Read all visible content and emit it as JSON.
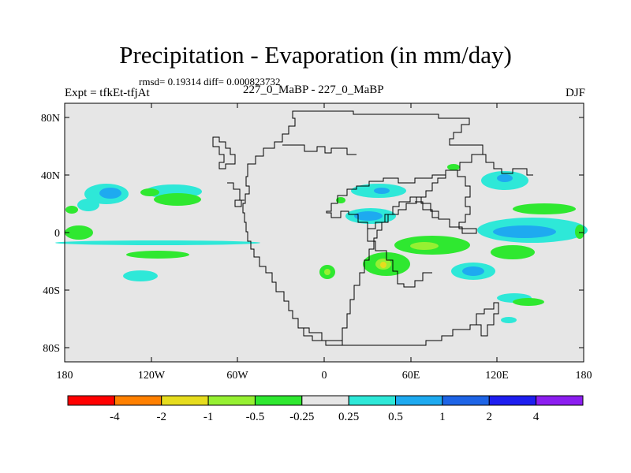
{
  "figure": {
    "title": "Precipitation - Evaporation (in mm/day)",
    "stats": "rmsd= 0.19314 diff= 0.000823732",
    "left_label": "Expt = tfkEt-tfjAt",
    "center_label": "227_0_MaBP - 227_0_MaBP",
    "right_label": "DJF"
  },
  "map": {
    "lat_ticks": [
      "80N",
      "40N",
      "0",
      "40S",
      "80S"
    ],
    "lon_ticks": [
      "180",
      "120W",
      "60W",
      "0",
      "60E",
      "120E",
      "180"
    ],
    "background_color": "#e6e6e6"
  },
  "colorbar": {
    "colors": [
      "#ff0000",
      "#ff8000",
      "#e6dc1e",
      "#96f032",
      "#2fe830",
      "#e6e6e6",
      "#2ee8d8",
      "#1eaaf0",
      "#1e64e6",
      "#1e1ef0",
      "#8c1ef0"
    ],
    "labels": [
      "-4",
      "-2",
      "-1",
      "-0.5",
      "-0.25",
      "0.25",
      "0.5",
      "1",
      "2",
      "4"
    ]
  }
}
